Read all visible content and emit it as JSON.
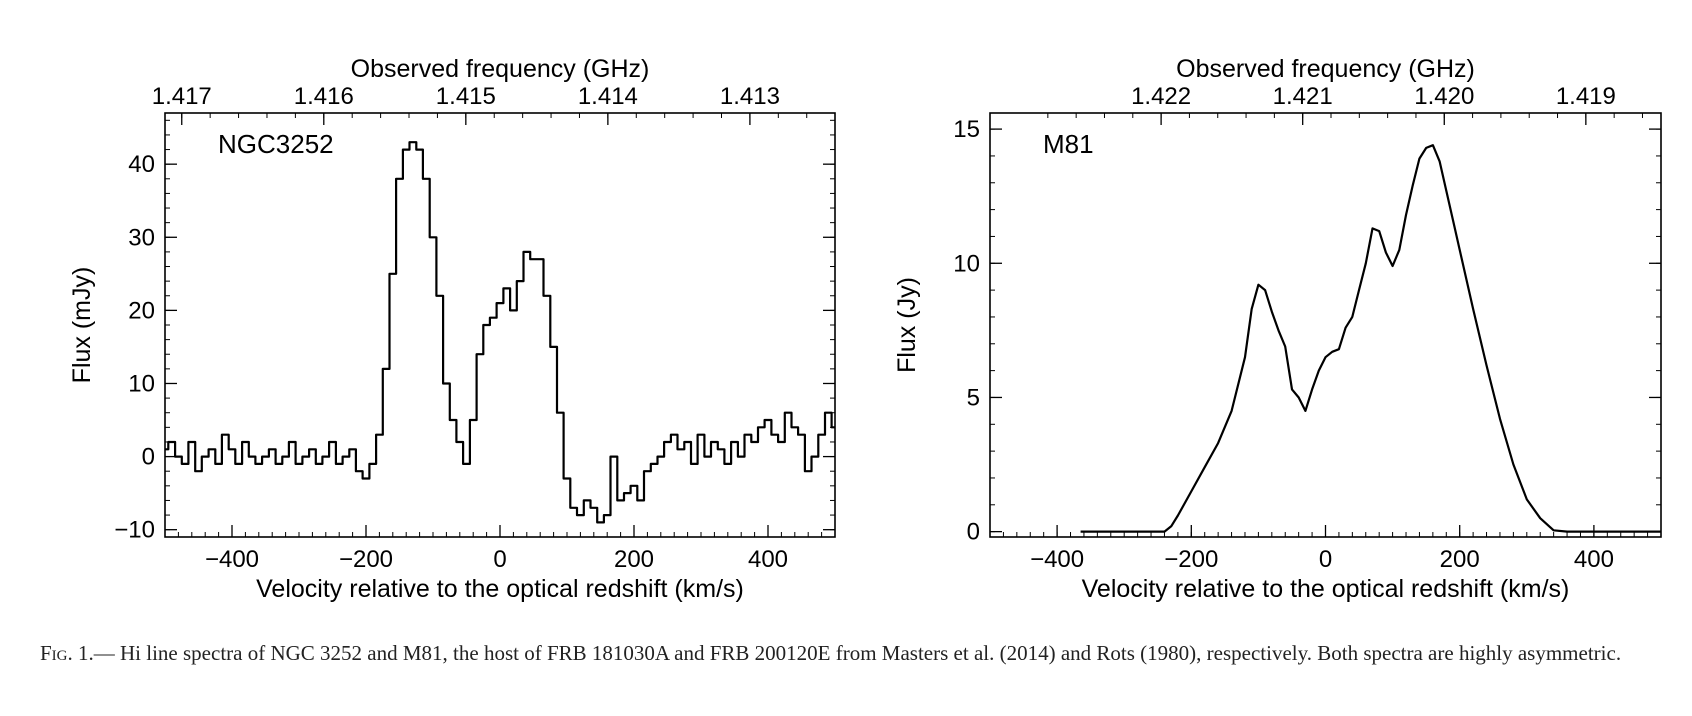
{
  "chart_data": [
    {
      "type": "line",
      "step": true,
      "label": "NGC3252",
      "xlabel": "Velocity relative to the optical redshift (km/s)",
      "ylabel": "Flux (mJy)",
      "top_xlabel": "Observed frequency (GHz)",
      "xlim": [
        -500,
        500
      ],
      "ylim": [
        -11,
        47
      ],
      "x_ticks": [
        -400,
        -200,
        0,
        200,
        400
      ],
      "x_ticklabels": [
        "−400",
        "−200",
        "0",
        "200",
        "400"
      ],
      "y_ticks": [
        -10,
        0,
        10,
        20,
        30,
        40
      ],
      "y_ticklabels": [
        "−10",
        "0",
        "10",
        "20",
        "30",
        "40"
      ],
      "top_ticks": [
        {
          "label": "1.417",
          "v": -475
        },
        {
          "label": "1.416",
          "v": -263
        },
        {
          "label": "1.415",
          "v": -51
        },
        {
          "label": "1.414",
          "v": 161
        },
        {
          "label": "1.413",
          "v": 373
        }
      ],
      "series": [
        {
          "x": [
            -500,
            -490,
            -480,
            -470,
            -460,
            -450,
            -440,
            -430,
            -420,
            -410,
            -400,
            -390,
            -380,
            -370,
            -360,
            -350,
            -340,
            -330,
            -320,
            -310,
            -300,
            -290,
            -280,
            -270,
            -260,
            -250,
            -240,
            -230,
            -220,
            -210,
            -200,
            -190,
            -180,
            -170,
            -160,
            -150,
            -140,
            -130,
            -120,
            -110,
            -100,
            -90,
            -80,
            -70,
            -60,
            -50,
            -40,
            -30,
            -20,
            -10,
            0,
            10,
            20,
            30,
            40,
            50,
            60,
            70,
            80,
            90,
            100,
            110,
            120,
            130,
            140,
            150,
            160,
            170,
            180,
            190,
            200,
            210,
            220,
            230,
            240,
            250,
            260,
            270,
            280,
            290,
            300,
            310,
            320,
            330,
            340,
            350,
            360,
            370,
            380,
            390,
            400,
            410,
            420,
            430,
            440,
            450,
            460,
            470,
            480,
            490,
            500
          ],
          "y": [
            1,
            2,
            0,
            -1,
            2,
            -2,
            0,
            1,
            -1,
            3,
            1,
            -1,
            2,
            0,
            -1,
            0,
            1,
            -1,
            0,
            2,
            -1,
            0,
            1,
            -1,
            0,
            2,
            -1,
            0,
            1,
            -2,
            -3,
            -1,
            3,
            12,
            25,
            38,
            42,
            43,
            42,
            38,
            30,
            22,
            10,
            5,
            2,
            -1,
            5,
            14,
            18,
            19,
            21,
            23,
            20,
            24,
            28,
            27,
            27,
            22,
            15,
            6,
            -3,
            -7,
            -8,
            -6,
            -7,
            -9,
            -8,
            0,
            -6,
            -5,
            -4,
            -6,
            -2,
            -1,
            0,
            2,
            3,
            1,
            2,
            -1,
            3,
            0,
            2,
            1,
            -1,
            2,
            0,
            3,
            2,
            4,
            5,
            3,
            2,
            6,
            4,
            3,
            -2,
            0,
            3,
            6,
            4
          ]
        }
      ]
    },
    {
      "type": "line",
      "label": "M81",
      "xlabel": "Velocity relative to the optical redshift (km/s)",
      "ylabel": "Flux (Jy)",
      "top_xlabel": "Observed frequency (GHz)",
      "xlim": [
        -500,
        500
      ],
      "ylim": [
        -0.2,
        15.6
      ],
      "x_ticks": [
        -400,
        -200,
        0,
        200,
        400
      ],
      "x_ticklabels": [
        "−400",
        "−200",
        "0",
        "200",
        "400"
      ],
      "y_ticks": [
        0,
        5,
        10,
        15
      ],
      "y_ticklabels": [
        "0",
        "5",
        "10",
        "15"
      ],
      "top_ticks": [
        {
          "label": "1.422",
          "v": -245
        },
        {
          "label": "1.421",
          "v": -34
        },
        {
          "label": "1.420",
          "v": 177
        },
        {
          "label": "1.419",
          "v": 388
        }
      ],
      "series": [
        {
          "x": [
            -365,
            -300,
            -240,
            -230,
            -220,
            -200,
            -180,
            -160,
            -140,
            -120,
            -110,
            -100,
            -90,
            -80,
            -70,
            -60,
            -50,
            -40,
            -30,
            -20,
            -10,
            0,
            10,
            20,
            30,
            40,
            50,
            60,
            70,
            80,
            90,
            100,
            110,
            120,
            130,
            140,
            150,
            160,
            170,
            180,
            190,
            200,
            220,
            240,
            260,
            280,
            300,
            320,
            340,
            360,
            380,
            400,
            420,
            440,
            460,
            480,
            500
          ],
          "y": [
            0,
            0,
            0,
            0.2,
            0.6,
            1.5,
            2.4,
            3.3,
            4.5,
            6.5,
            8.3,
            9.2,
            9,
            8.2,
            7.5,
            6.9,
            5.3,
            5.0,
            4.5,
            5.3,
            6.0,
            6.5,
            6.7,
            6.8,
            7.6,
            8.0,
            9.0,
            10.0,
            11.3,
            11.2,
            10.4,
            9.9,
            10.5,
            11.8,
            12.9,
            13.9,
            14.3,
            14.4,
            13.8,
            12.7,
            11.6,
            10.5,
            8.3,
            6.2,
            4.2,
            2.5,
            1.2,
            0.5,
            0.05,
            0,
            0,
            0,
            0,
            0,
            0,
            0,
            0
          ]
        }
      ]
    }
  ],
  "caption": {
    "fig_label": "Fig. 1.—",
    "text": " Hi line spectra of NGC 3252 and M81, the host of FRB 181030A and FRB 200120E from Masters et al. (2014) and Rots (1980), respectively. Both spectra are highly asymmetric."
  }
}
